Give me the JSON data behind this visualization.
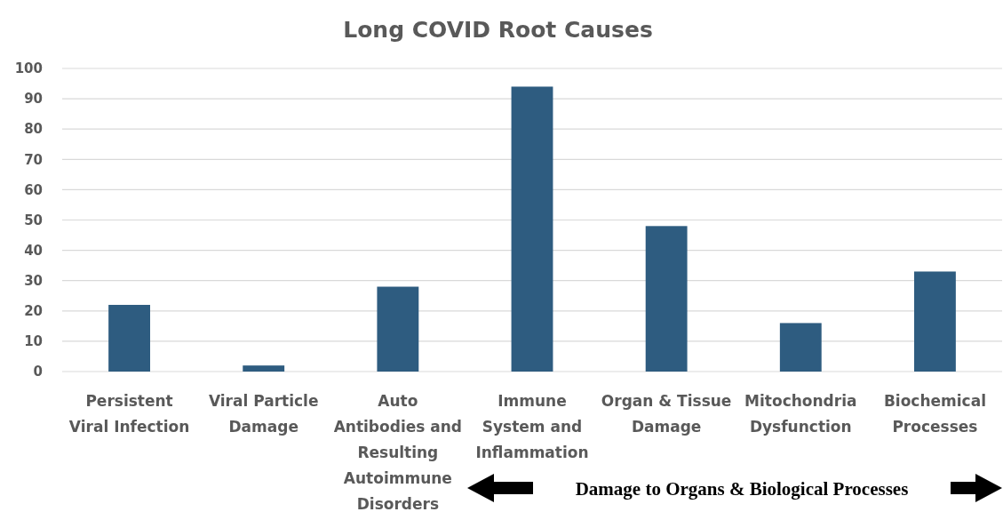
{
  "chart_data": {
    "type": "bar",
    "title": "Long COVID Root Causes",
    "categories": [
      "Persistent Viral Infection",
      "Viral Particle Damage",
      "Auto Antibodies and Resulting Autoimmune Disorders",
      "Immune System and Inflammation",
      "Organ & Tissue Damage",
      "Mitochondria Dysfunction",
      "Biochemical Processes"
    ],
    "values": [
      22,
      2,
      28,
      94,
      48,
      16,
      33
    ],
    "color": "#2e5c80",
    "ylim": [
      0,
      100
    ],
    "yticks": [
      0,
      10,
      20,
      30,
      40,
      50,
      60,
      70,
      80,
      90,
      100
    ],
    "grid": "y",
    "annotations": [
      "Damage to Organs & Biological Processes"
    ]
  }
}
